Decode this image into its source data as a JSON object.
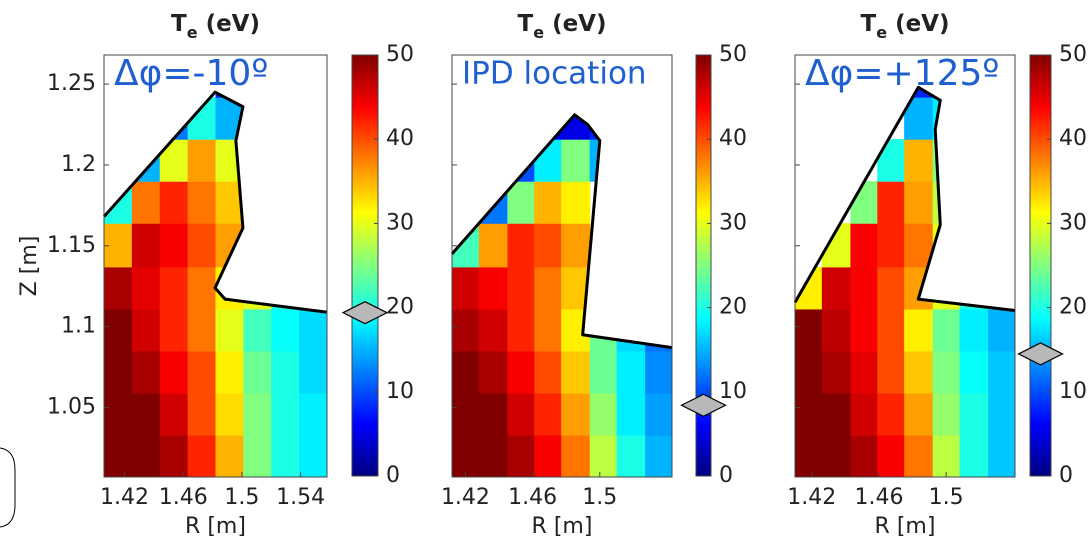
{
  "chart_data": [
    {
      "type": "heatmap",
      "title": {
        "symbol": "T",
        "subscript": "e",
        "unit": "(eV)"
      },
      "annotation": "Δφ=-10º",
      "xlabel": "R [m]",
      "ylabel": "Z [m]",
      "colormap": "jet",
      "xlim": [
        1.406,
        1.558
      ],
      "ylim": [
        1.007,
        1.268
      ],
      "xticks": [
        1.42,
        1.46,
        1.5,
        1.54
      ],
      "yticks": [
        1.05,
        1.1,
        1.15,
        1.2,
        1.25
      ],
      "ytick_labels": true,
      "r_edges": [
        1.406,
        1.425,
        1.444,
        1.463,
        1.482,
        1.501,
        1.52,
        1.539,
        1.558
      ],
      "z_edges": [
        1.007,
        1.033,
        1.059,
        1.085,
        1.111,
        1.137,
        1.164,
        1.19,
        1.216,
        1.242,
        1.268
      ],
      "values": [
        [
          50,
          50,
          48,
          42,
          35,
          25,
          20,
          18
        ],
        [
          50,
          50,
          46,
          40,
          33,
          25,
          20,
          18
        ],
        [
          50,
          48,
          44,
          40,
          32,
          24,
          20,
          17
        ],
        [
          50,
          46,
          42,
          38,
          30,
          22,
          19,
          17
        ],
        [
          48,
          45,
          42,
          38,
          32,
          30,
          20,
          17
        ],
        [
          35,
          46,
          44,
          40,
          36,
          null,
          null,
          null
        ],
        [
          20,
          38,
          42,
          38,
          34,
          null,
          null,
          null
        ],
        [
          null,
          15,
          30,
          36,
          30,
          null,
          null,
          null
        ],
        [
          null,
          null,
          12,
          20,
          15,
          null,
          null,
          null
        ],
        [
          null,
          null,
          null,
          null,
          8,
          null,
          null,
          null
        ]
      ],
      "wall": {
        "r": [
          1.406,
          1.4817,
          1.5007,
          1.4959,
          1.5007,
          1.4817,
          1.4885,
          1.5576
        ],
        "z": [
          1.168,
          1.245,
          1.236,
          1.215,
          1.161,
          1.124,
          1.117,
          1.109
        ]
      },
      "clim": [
        0,
        50
      ],
      "cticks": [
        0,
        10,
        20,
        30,
        40,
        50
      ],
      "marker_value": 19.4
    },
    {
      "type": "heatmap",
      "title": {
        "symbol": "T",
        "subscript": "e",
        "unit": "(eV)"
      },
      "annotation": "IPD location",
      "xlabel": "R [m]",
      "colormap": "jet",
      "xlim": [
        1.412,
        1.543
      ],
      "ylim": [
        1.007,
        1.268
      ],
      "xticks": [
        1.42,
        1.46,
        1.5
      ],
      "yticks": [
        1.05,
        1.1,
        1.15,
        1.2,
        1.25
      ],
      "ytick_labels": false,
      "r_edges": [
        1.412,
        1.428,
        1.445,
        1.461,
        1.477,
        1.494,
        1.51,
        1.527,
        1.543
      ],
      "z_edges": [
        1.007,
        1.033,
        1.059,
        1.085,
        1.111,
        1.137,
        1.164,
        1.19,
        1.216,
        1.242,
        1.268
      ],
      "values": [
        [
          50,
          50,
          48,
          44,
          38,
          28,
          20,
          15
        ],
        [
          50,
          50,
          46,
          42,
          36,
          26,
          18,
          14
        ],
        [
          50,
          48,
          44,
          40,
          34,
          24,
          18,
          13
        ],
        [
          48,
          46,
          42,
          38,
          32,
          24,
          17,
          12
        ],
        [
          46,
          44,
          42,
          38,
          34,
          null,
          null,
          null
        ],
        [
          22,
          36,
          42,
          40,
          36,
          null,
          null,
          null
        ],
        [
          null,
          12,
          25,
          35,
          32,
          null,
          null,
          null
        ],
        [
          null,
          null,
          10,
          18,
          25,
          15,
          null,
          null
        ],
        [
          null,
          null,
          null,
          6,
          5,
          8,
          null,
          null
        ],
        [
          null,
          null,
          null,
          null,
          null,
          null,
          null,
          null
        ]
      ],
      "wall": {
        "r": [
          1.412,
          1.485,
          1.4928,
          1.5,
          1.4898,
          1.543
        ],
        "z": [
          1.145,
          1.231,
          1.225,
          1.215,
          1.095,
          1.087
        ]
      },
      "clim": [
        0,
        50
      ],
      "cticks": [
        0,
        10,
        20,
        30,
        40,
        50
      ],
      "marker_value": 8.4
    },
    {
      "type": "heatmap",
      "title": {
        "symbol": "T",
        "subscript": "e",
        "unit": "(eV)"
      },
      "annotation": "Δφ=+125º",
      "xlabel": "R [m]",
      "colormap": "jet",
      "xlim": [
        1.41,
        1.541
      ],
      "ylim": [
        1.007,
        1.268
      ],
      "xticks": [
        1.42,
        1.46,
        1.5
      ],
      "yticks": [
        1.05,
        1.1,
        1.15,
        1.2,
        1.25
      ],
      "ytick_labels": false,
      "r_edges": [
        1.41,
        1.426,
        1.443,
        1.459,
        1.475,
        1.492,
        1.508,
        1.525,
        1.541
      ],
      "z_edges": [
        1.007,
        1.033,
        1.059,
        1.085,
        1.111,
        1.137,
        1.164,
        1.19,
        1.216,
        1.242,
        1.268
      ],
      "values": [
        [
          50,
          50,
          48,
          44,
          38,
          28,
          20,
          16
        ],
        [
          50,
          50,
          46,
          42,
          36,
          26,
          20,
          16
        ],
        [
          50,
          48,
          45,
          40,
          34,
          25,
          19,
          16
        ],
        [
          50,
          47,
          44,
          40,
          32,
          24,
          18,
          15
        ],
        [
          32,
          46,
          44,
          40,
          36,
          30,
          20,
          16
        ],
        [
          null,
          30,
          44,
          42,
          38,
          30,
          null,
          null
        ],
        [
          null,
          null,
          25,
          42,
          36,
          28,
          null,
          null
        ],
        [
          null,
          null,
          null,
          20,
          35,
          25,
          null,
          null
        ],
        [
          null,
          null,
          null,
          null,
          15,
          18,
          null,
          null
        ],
        [
          null,
          null,
          null,
          null,
          8,
          null,
          null,
          null
        ]
      ],
      "wall": {
        "r": [
          1.41,
          1.4834,
          1.4965,
          1.4935,
          1.4965,
          1.4834,
          1.541
        ],
        "z": [
          1.115,
          1.248,
          1.24,
          1.222,
          1.163,
          1.117,
          1.11
        ]
      },
      "clim": [
        0,
        50
      ],
      "cticks": [
        0,
        10,
        20,
        30,
        40,
        50
      ],
      "marker_value": 14.5
    }
  ]
}
